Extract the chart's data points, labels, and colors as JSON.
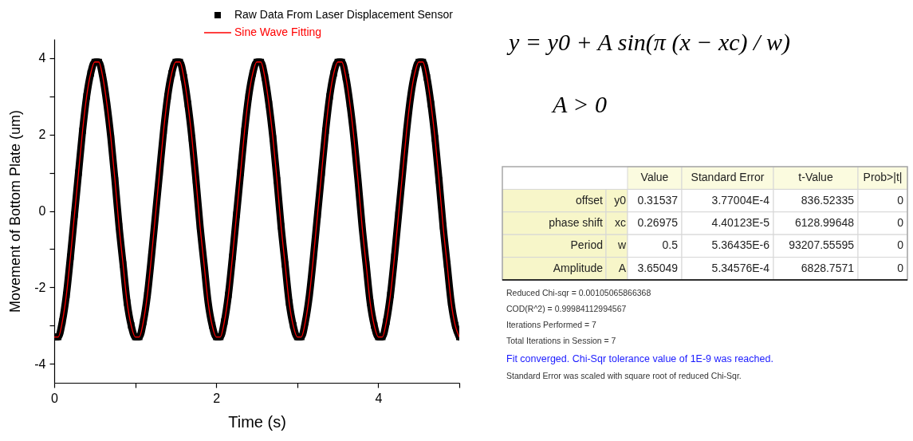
{
  "chart_data": [
    {
      "type": "line",
      "xlabel": "Time (s)",
      "ylabel": "Movement of Bottom Plate (um)",
      "x": [
        0,
        0.05,
        0.1,
        0.15,
        0.2,
        0.25,
        0.3,
        0.35,
        0.4,
        0.45,
        0.5,
        0.55,
        0.6,
        0.65,
        0.7,
        0.75,
        0.8,
        0.85,
        0.9,
        0.95,
        1,
        1.05,
        1.1,
        1.15,
        1.2,
        1.25,
        1.3,
        1.35,
        1.4,
        1.45,
        1.5,
        1.55,
        1.6,
        1.65,
        1.7,
        1.75,
        1.8,
        1.85,
        1.9,
        1.95,
        2,
        2.05,
        2.1,
        2.15,
        2.2,
        2.25,
        2.3,
        2.35,
        2.4,
        2.45,
        2.5,
        2.55,
        2.6,
        2.65,
        2.7,
        2.75,
        2.8,
        2.85,
        2.9,
        2.95,
        3,
        3.05,
        3.1,
        3.15,
        3.2,
        3.25,
        3.3,
        3.35,
        3.4,
        3.45,
        3.5,
        3.55,
        3.6,
        3.65,
        3.7,
        3.75,
        3.8,
        3.85,
        3.9,
        3.95,
        4,
        4.05,
        4.1,
        4.15,
        4.2,
        4.25,
        4.3,
        4.35,
        4.4,
        4.45,
        4.5,
        4.55,
        4.6,
        4.65,
        4.7,
        4.75,
        4.8,
        4.85,
        4.9,
        4.95,
        5
      ],
      "xlim": [
        0,
        5
      ],
      "xticks": [
        0,
        {
          "value": 1,
          "label": null
        },
        2,
        {
          "value": 3,
          "label": null
        },
        4,
        {
          "value": 5,
          "label": null
        }
      ],
      "ylim": [
        -4.5,
        4.5
      ],
      "yticks": [
        -4,
        {
          "value": -3,
          "label": null
        },
        -2,
        {
          "value": -1,
          "label": null
        },
        0,
        {
          "value": 1,
          "label": null
        },
        2,
        {
          "value": 3,
          "label": null
        },
        4
      ],
      "legend": "top",
      "line_style": "solid",
      "series": [
        {
          "name": "Raw Data From Laser Displacement Sensor",
          "color": "#000000",
          "marker": "square",
          "values": [
            -3.3,
            -3.3,
            -2.9,
            -2.2,
            -1.2,
            -0.1,
            1,
            2.1,
            3,
            3.6,
            3.9,
            3.9,
            3.5,
            2.8,
            1.9,
            0.8,
            -0.4,
            -1.4,
            -2.4,
            -3,
            -3.3,
            -3.3,
            -2.9,
            -2.2,
            -1.2,
            -0.1,
            1,
            2.1,
            3,
            3.6,
            3.9,
            3.9,
            3.5,
            2.8,
            1.9,
            0.8,
            -0.4,
            -1.4,
            -2.4,
            -3,
            -3.3,
            -3.3,
            -2.9,
            -2.2,
            -1.2,
            -0.1,
            1,
            2.1,
            3,
            3.6,
            3.9,
            3.9,
            3.5,
            2.8,
            1.9,
            0.8,
            -0.4,
            -1.4,
            -2.4,
            -3,
            -3.3,
            -3.3,
            -2.9,
            -2.2,
            -1.2,
            -0.1,
            1,
            2.1,
            3,
            3.6,
            3.9,
            3.9,
            3.5,
            2.8,
            1.9,
            0.8,
            -0.4,
            -1.4,
            -2.4,
            -3,
            -3.3,
            -3.3,
            -2.9,
            -2.2,
            -1.2,
            -0.1,
            1,
            2.1,
            3,
            3.6,
            3.9,
            3.9,
            3.5,
            2.8,
            1.9,
            0.8,
            -0.4,
            -1.4,
            -2.4,
            -3,
            -3.3
          ]
        },
        {
          "name": "Sine Wave Fitting",
          "color": "#ff0000",
          "marker": "none",
          "values": [
            -3.3,
            -3.3,
            -2.9,
            -2.2,
            -1.2,
            -0.1,
            1,
            2.1,
            3,
            3.6,
            3.9,
            3.9,
            3.5,
            2.8,
            1.9,
            0.8,
            -0.4,
            -1.4,
            -2.4,
            -3,
            -3.3,
            -3.3,
            -2.9,
            -2.2,
            -1.2,
            -0.1,
            1,
            2.1,
            3,
            3.6,
            3.9,
            3.9,
            3.5,
            2.8,
            1.9,
            0.8,
            -0.4,
            -1.4,
            -2.4,
            -3,
            -3.3,
            -3.3,
            -2.9,
            -2.2,
            -1.2,
            -0.1,
            1,
            2.1,
            3,
            3.6,
            3.9,
            3.9,
            3.5,
            2.8,
            1.9,
            0.8,
            -0.4,
            -1.4,
            -2.4,
            -3,
            -3.3,
            -3.3,
            -2.9,
            -2.2,
            -1.2,
            -0.1,
            1,
            2.1,
            3,
            3.6,
            3.9,
            3.9,
            3.5,
            2.8,
            1.9,
            0.8,
            -0.4,
            -1.4,
            -2.4,
            -3,
            -3.3,
            -3.3,
            -2.9,
            -2.2,
            -1.2,
            -0.1,
            1,
            2.1,
            3,
            3.6,
            3.9,
            3.9,
            3.5,
            2.8,
            1.9,
            0.8,
            -0.4,
            -1.4,
            -2.4,
            -3,
            -3.3
          ]
        }
      ]
    },
    {
      "type": "other",
      "title": "y = y0 + A sin(π (x − xc) / w)",
      "subtitle": "A > 0",
      "categories": [
        "Value",
        "Standard Error",
        "t-Value",
        "Prob>|t|"
      ],
      "y_categories": [
        "offset",
        "phase shift",
        "Period",
        "Amplitude"
      ],
      "y2_categories": [
        "y0",
        "xc",
        "w",
        "A"
      ],
      "cell_labels": [
        [
          "0.31537",
          "3.77004E-4",
          "836.52335",
          "0"
        ],
        [
          "0.26975",
          "4.40123E-5",
          "6128.99648",
          "0"
        ],
        [
          "0.5",
          "5.36435E-6",
          "93207.55595",
          "0"
        ],
        [
          "3.65049",
          "5.34576E-4",
          "6828.7571",
          "0"
        ]
      ],
      "annotations": [
        "Reduced Chi-sqr = 0.00105065866368",
        "COD(R^2) = 0.99984112994567",
        "Iterations Performed = 7",
        "Total Iterations in Session = 7",
        "Fit converged. Chi-Sqr tolerance value of 1E-9 was reached.",
        "Standard Error was scaled with square root of reduced Chi-Sqr."
      ]
    }
  ]
}
